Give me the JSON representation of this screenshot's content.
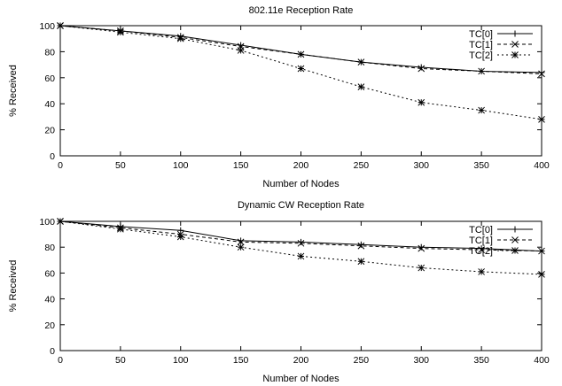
{
  "chart_data": [
    {
      "type": "line",
      "title": "802.11e Reception Rate",
      "xlabel": "Number of Nodes",
      "ylabel": "% Received",
      "xlim": [
        0,
        400
      ],
      "ylim": [
        0,
        100
      ],
      "x": [
        0,
        50,
        100,
        150,
        200,
        250,
        300,
        350,
        400
      ],
      "x_ticks": [
        "0",
        "50",
        "100",
        "150",
        "200",
        "250",
        "300",
        "350",
        "400"
      ],
      "y_ticks": [
        "0",
        "20",
        "40",
        "60",
        "80",
        "100"
      ],
      "grid": false,
      "legend_position": "top-right",
      "series": [
        {
          "name": "TC[0]",
          "marker": "plus",
          "dash": "solid",
          "values": [
            100,
            96,
            92,
            85,
            78,
            72,
            68,
            65,
            64
          ]
        },
        {
          "name": "TC[1]",
          "marker": "cross",
          "dash": "dashed",
          "values": [
            100,
            96,
            91,
            84,
            78,
            72,
            67,
            65,
            63
          ]
        },
        {
          "name": "TC[2]",
          "marker": "star",
          "dash": "dotted",
          "values": [
            100,
            95,
            90,
            81,
            67,
            53,
            41,
            35,
            28
          ]
        }
      ]
    },
    {
      "type": "line",
      "title": "Dynamic CW Reception Rate",
      "xlabel": "Number of Nodes",
      "ylabel": "% Received",
      "xlim": [
        0,
        400
      ],
      "ylim": [
        0,
        100
      ],
      "x": [
        0,
        50,
        100,
        150,
        200,
        250,
        300,
        350,
        400
      ],
      "x_ticks": [
        "0",
        "50",
        "100",
        "150",
        "200",
        "250",
        "300",
        "350",
        "400"
      ],
      "y_ticks": [
        "0",
        "20",
        "40",
        "60",
        "80",
        "100"
      ],
      "grid": false,
      "legend_position": "top-right",
      "series": [
        {
          "name": "TC[0]",
          "marker": "plus",
          "dash": "solid",
          "values": [
            100,
            96,
            93,
            85,
            84,
            82,
            80,
            79,
            77
          ]
        },
        {
          "name": "TC[1]",
          "marker": "cross",
          "dash": "dashed",
          "values": [
            100,
            95,
            90,
            84,
            83,
            81,
            79,
            78,
            77
          ]
        },
        {
          "name": "TC[2]",
          "marker": "star",
          "dash": "dotted",
          "values": [
            100,
            94,
            88,
            80,
            73,
            69,
            64,
            61,
            59
          ]
        }
      ]
    }
  ]
}
